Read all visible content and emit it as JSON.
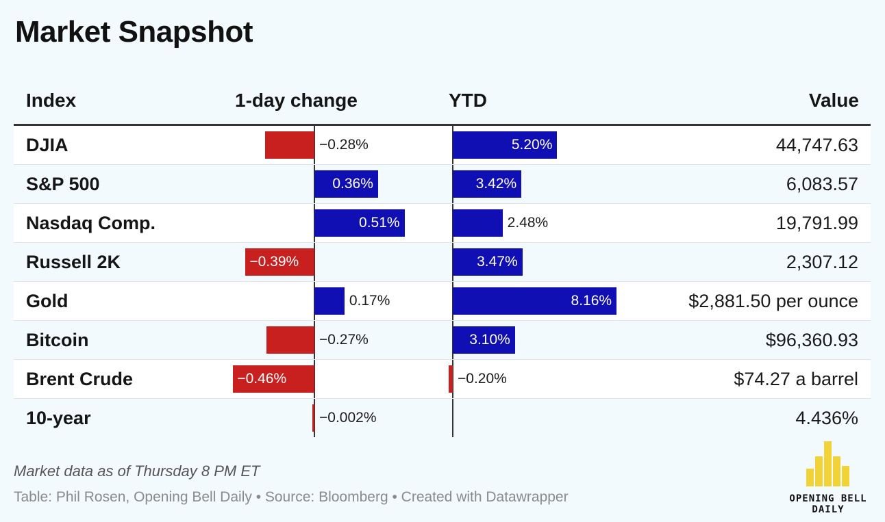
{
  "title": "Market Snapshot",
  "headers": {
    "index": "Index",
    "day": "1-day change",
    "ytd": "YTD",
    "value": "Value"
  },
  "colors": {
    "positive": "#0f0fb3",
    "negative": "#c81f1f"
  },
  "chart_data": {
    "type": "table",
    "title": "Market Snapshot",
    "columns": [
      "Index",
      "1-day change",
      "YTD",
      "Value"
    ],
    "rows": [
      {
        "index": "DJIA",
        "day": -0.28,
        "day_label": "−0.28%",
        "ytd": 5.2,
        "ytd_label": "5.20%",
        "value": "44,747.63"
      },
      {
        "index": "S&P 500",
        "day": 0.36,
        "day_label": "0.36%",
        "ytd": 3.42,
        "ytd_label": "3.42%",
        "value": "6,083.57"
      },
      {
        "index": "Nasdaq Comp.",
        "day": 0.51,
        "day_label": "0.51%",
        "ytd": 2.48,
        "ytd_label": "2.48%",
        "value": "19,791.99"
      },
      {
        "index": "Russell 2K",
        "day": -0.39,
        "day_label": "−0.39%",
        "ytd": 3.47,
        "ytd_label": "3.47%",
        "value": "2,307.12"
      },
      {
        "index": "Gold",
        "day": 0.17,
        "day_label": "0.17%",
        "ytd": 8.16,
        "ytd_label": "8.16%",
        "value": "$2,881.50 per ounce"
      },
      {
        "index": "Bitcoin",
        "day": -0.27,
        "day_label": "−0.27%",
        "ytd": 3.1,
        "ytd_label": "3.10%",
        "value": "$96,360.93"
      },
      {
        "index": "Brent Crude",
        "day": -0.46,
        "day_label": "−0.46%",
        "ytd": -0.2,
        "ytd_label": "−0.20%",
        "value": "$74.27 a barrel"
      },
      {
        "index": "10-year",
        "day": -0.002,
        "day_label": "−0.002%",
        "ytd": null,
        "ytd_label": "",
        "value": "4.436%"
      }
    ]
  },
  "footer": {
    "note": "Market data as of Thursday 8 PM ET",
    "credits": "Table: Phil Rosen, Opening Bell Daily • Source: Bloomberg • Created with Datawrapper"
  },
  "logo": {
    "text": "OPENING BELL DAILY"
  }
}
